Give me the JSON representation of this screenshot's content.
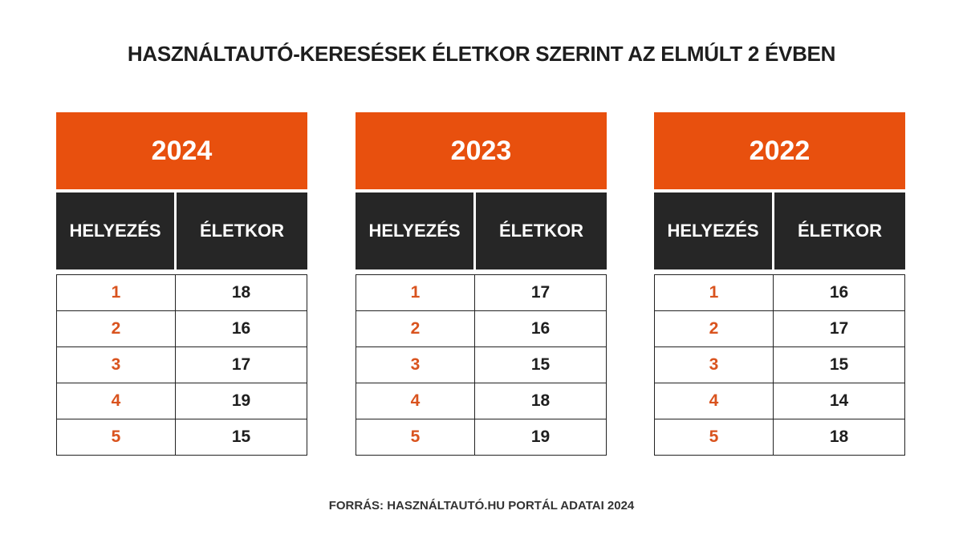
{
  "title": "HASZNÁLTAUTÓ-KERESÉSEK ÉLETKOR SZERINT AZ ELMÚLT 2 ÉVBEN",
  "tables": [
    {
      "year": "2024",
      "headers": [
        "HELYEZÉS",
        "ÉLETKOR"
      ],
      "rows": [
        [
          1,
          18
        ],
        [
          2,
          16
        ],
        [
          3,
          17
        ],
        [
          4,
          19
        ],
        [
          5,
          15
        ]
      ]
    },
    {
      "year": "2023",
      "headers": [
        "HELYEZÉS",
        "ÉLETKOR"
      ],
      "rows": [
        [
          1,
          17
        ],
        [
          2,
          16
        ],
        [
          3,
          15
        ],
        [
          4,
          18
        ],
        [
          5,
          19
        ]
      ]
    },
    {
      "year": "2022",
      "headers": [
        "HELYEZÉS",
        "ÉLETKOR"
      ],
      "rows": [
        [
          1,
          16
        ],
        [
          2,
          17
        ],
        [
          3,
          15
        ],
        [
          4,
          14
        ],
        [
          5,
          18
        ]
      ]
    }
  ],
  "source": "FORRÁS: HASZNÁLTAUTÓ.HU PORTÁL ADATAI 2024"
}
